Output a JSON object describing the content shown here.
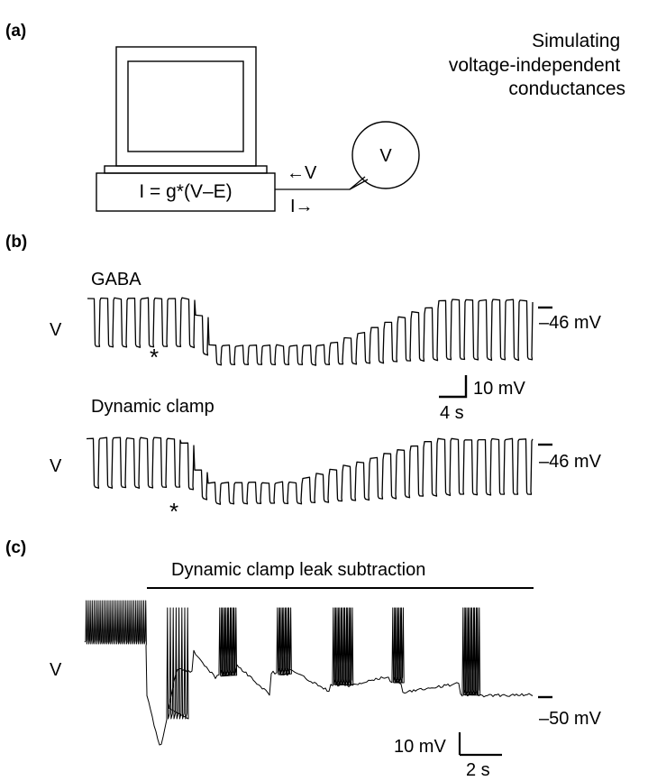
{
  "panel_a": {
    "label": "(a)",
    "title_lines": [
      "Simulating",
      "voltage-independent",
      "conductances"
    ],
    "equation": "I = g*(V–E)",
    "arrow_v": "←V",
    "arrow_i": "I→",
    "cell_label": "V"
  },
  "panel_b": {
    "label": "(b)",
    "trace1_title": "GABA",
    "trace2_title": "Dynamic clamp",
    "v_label_1": "V",
    "v_label_2": "V",
    "level_label_1": "–46 mV",
    "level_label_2": "–46 mV",
    "scale_v": "10 mV",
    "scale_t": "4 s",
    "marker_1": "*",
    "marker_2": "*"
  },
  "panel_c": {
    "label": "(c)",
    "bar_title": "Dynamic clamp leak subtraction",
    "v_label": "V",
    "level_label": "–50 mV",
    "scale_v": "10 mV",
    "scale_t": "2 s"
  }
}
